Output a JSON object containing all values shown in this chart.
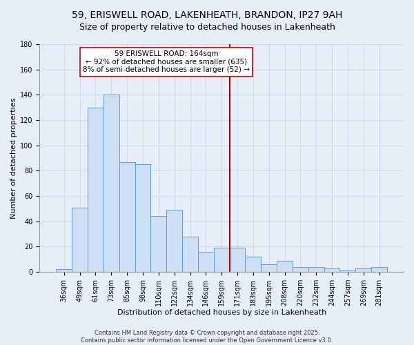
{
  "title": "59, ERISWELL ROAD, LAKENHEATH, BRANDON, IP27 9AH",
  "subtitle": "Size of property relative to detached houses in Lakenheath",
  "xlabel": "Distribution of detached houses by size in Lakenheath",
  "ylabel": "Number of detached properties",
  "categories": [
    "36sqm",
    "49sqm",
    "61sqm",
    "73sqm",
    "85sqm",
    "98sqm",
    "110sqm",
    "122sqm",
    "134sqm",
    "146sqm",
    "159sqm",
    "171sqm",
    "183sqm",
    "195sqm",
    "208sqm",
    "220sqm",
    "232sqm",
    "244sqm",
    "257sqm",
    "269sqm",
    "281sqm"
  ],
  "values": [
    2,
    51,
    130,
    140,
    87,
    85,
    44,
    49,
    28,
    16,
    19,
    19,
    12,
    6,
    9,
    4,
    4,
    3,
    1,
    3,
    4
  ],
  "bar_color": "#ccdff5",
  "bar_edge_color": "#5b9bd5",
  "ylim": [
    0,
    180
  ],
  "yticks": [
    0,
    20,
    40,
    60,
    80,
    100,
    120,
    140,
    160,
    180
  ],
  "vline_x": 10.5,
  "vline_color": "#aa0000",
  "annotation_title": "59 ERISWELL ROAD: 164sqm",
  "annotation_line1": "← 92% of detached houses are smaller (635)",
  "annotation_line2": "8% of semi-detached houses are larger (52) →",
  "annotation_box_color": "#ffffff",
  "annotation_box_edge": "#cc0000",
  "footer1": "Contains HM Land Registry data © Crown copyright and database right 2025.",
  "footer2": "Contains public sector information licensed under the Open Government Licence v3.0.",
  "background_color": "#e8eef8",
  "grid_color": "#d0d8e8",
  "title_fontsize": 10,
  "subtitle_fontsize": 9,
  "axis_label_fontsize": 8,
  "tick_fontsize": 7,
  "footer_fontsize": 6,
  "annotation_fontsize": 7.5
}
